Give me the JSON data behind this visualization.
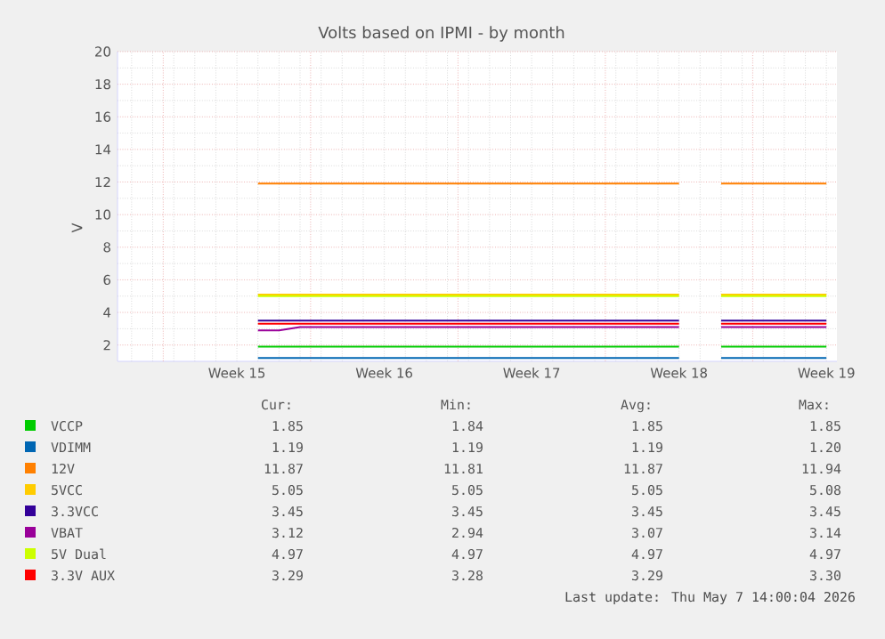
{
  "chart_data": {
    "type": "line",
    "title": "Volts based on IPMI - by month",
    "ylabel": "V",
    "categories": [
      null,
      null,
      null,
      null,
      null,
      "Week 15",
      null,
      null,
      null,
      null,
      null,
      null,
      "Week 16",
      null,
      null,
      null,
      null,
      null,
      null,
      "Week 17",
      null,
      null,
      null,
      null,
      null,
      null,
      "Week 18",
      null,
      null,
      null,
      null,
      null,
      null,
      "Week 19"
    ],
    "ylim": [
      1,
      20
    ],
    "yticks": [
      2,
      4,
      6,
      8,
      10,
      12,
      14,
      16,
      18,
      20
    ],
    "grid": true,
    "legend": "bottom",
    "series": [
      {
        "name": "VCCP",
        "color": "#00cc00",
        "values": [
          null,
          null,
          null,
          null,
          null,
          null,
          1.9,
          1.9,
          1.9,
          1.9,
          1.9,
          1.9,
          1.9,
          1.9,
          1.9,
          1.9,
          1.9,
          1.9,
          1.9,
          1.9,
          1.9,
          1.9,
          1.9,
          1.9,
          1.9,
          1.9,
          1.9,
          null,
          1.9,
          1.9,
          1.9,
          1.9,
          1.9,
          1.9
        ]
      },
      {
        "name": "VDIMM",
        "color": "#0066b3",
        "values": [
          null,
          null,
          null,
          null,
          null,
          null,
          1.2,
          1.2,
          1.2,
          1.2,
          1.2,
          1.2,
          1.2,
          1.2,
          1.2,
          1.2,
          1.2,
          1.2,
          1.2,
          1.2,
          1.2,
          1.2,
          1.2,
          1.2,
          1.2,
          1.2,
          1.2,
          null,
          1.2,
          1.2,
          1.2,
          1.2,
          1.2,
          1.2
        ]
      },
      {
        "name": "12V",
        "color": "#ff8000",
        "values": [
          null,
          null,
          null,
          null,
          null,
          null,
          11.9,
          11.9,
          11.9,
          11.9,
          11.9,
          11.9,
          11.9,
          11.9,
          11.9,
          11.9,
          11.9,
          11.9,
          11.9,
          11.9,
          11.9,
          11.9,
          11.9,
          11.9,
          11.9,
          11.9,
          11.9,
          null,
          11.9,
          11.9,
          11.9,
          11.9,
          11.9,
          11.9
        ]
      },
      {
        "name": "5VCC",
        "color": "#ffcc00",
        "values": [
          null,
          null,
          null,
          null,
          null,
          null,
          5.1,
          5.1,
          5.1,
          5.1,
          5.1,
          5.1,
          5.1,
          5.1,
          5.1,
          5.1,
          5.1,
          5.1,
          5.1,
          5.1,
          5.1,
          5.1,
          5.1,
          5.1,
          5.1,
          5.1,
          5.1,
          null,
          5.1,
          5.1,
          5.1,
          5.1,
          5.1,
          5.1
        ]
      },
      {
        "name": "3.3VCC",
        "color": "#330099",
        "values": [
          null,
          null,
          null,
          null,
          null,
          null,
          3.5,
          3.5,
          3.5,
          3.5,
          3.5,
          3.5,
          3.5,
          3.5,
          3.5,
          3.5,
          3.5,
          3.5,
          3.5,
          3.5,
          3.5,
          3.5,
          3.5,
          3.5,
          3.5,
          3.5,
          3.5,
          null,
          3.5,
          3.5,
          3.5,
          3.5,
          3.5,
          3.5
        ]
      },
      {
        "name": "VBAT",
        "color": "#990099",
        "values": [
          null,
          null,
          null,
          null,
          null,
          null,
          2.9,
          2.9,
          3.1,
          3.1,
          3.1,
          3.1,
          3.1,
          3.1,
          3.1,
          3.1,
          3.1,
          3.1,
          3.1,
          3.1,
          3.1,
          3.1,
          3.1,
          3.1,
          3.1,
          3.1,
          3.1,
          null,
          3.1,
          3.1,
          3.1,
          3.1,
          3.1,
          3.1
        ]
      },
      {
        "name": "5V Dual",
        "color": "#ccff00",
        "values": [
          null,
          null,
          null,
          null,
          null,
          null,
          5.0,
          5.0,
          5.0,
          5.0,
          5.0,
          5.0,
          5.0,
          5.0,
          5.0,
          5.0,
          5.0,
          5.0,
          5.0,
          5.0,
          5.0,
          5.0,
          5.0,
          5.0,
          5.0,
          5.0,
          5.0,
          null,
          5.0,
          5.0,
          5.0,
          5.0,
          5.0,
          5.0
        ]
      },
      {
        "name": "3.3V AUX",
        "color": "#ff0000",
        "values": [
          null,
          null,
          null,
          null,
          null,
          null,
          3.3,
          3.3,
          3.3,
          3.3,
          3.3,
          3.3,
          3.3,
          3.3,
          3.3,
          3.3,
          3.3,
          3.3,
          3.3,
          3.3,
          3.3,
          3.3,
          3.3,
          3.3,
          3.3,
          3.3,
          3.3,
          null,
          3.3,
          3.3,
          3.3,
          3.3,
          3.3,
          3.3
        ]
      }
    ],
    "annotations": [
      "Cur:",
      "Min:",
      "Avg:",
      "Max:",
      "1.85",
      "1.84",
      "1.85",
      "1.85",
      "1.19",
      "1.19",
      "1.19",
      "1.20",
      "11.87",
      "11.81",
      "11.87",
      "11.94",
      "5.05",
      "5.05",
      "5.05",
      "5.08",
      "3.45",
      "3.45",
      "3.45",
      "3.45",
      "3.12",
      "2.94",
      "3.07",
      "3.14",
      "4.97",
      "4.97",
      "4.97",
      "4.97",
      "3.29",
      "3.28",
      "3.29",
      "3.30",
      "Last update: Thu May  7 14:00:04 2026"
    ]
  }
}
